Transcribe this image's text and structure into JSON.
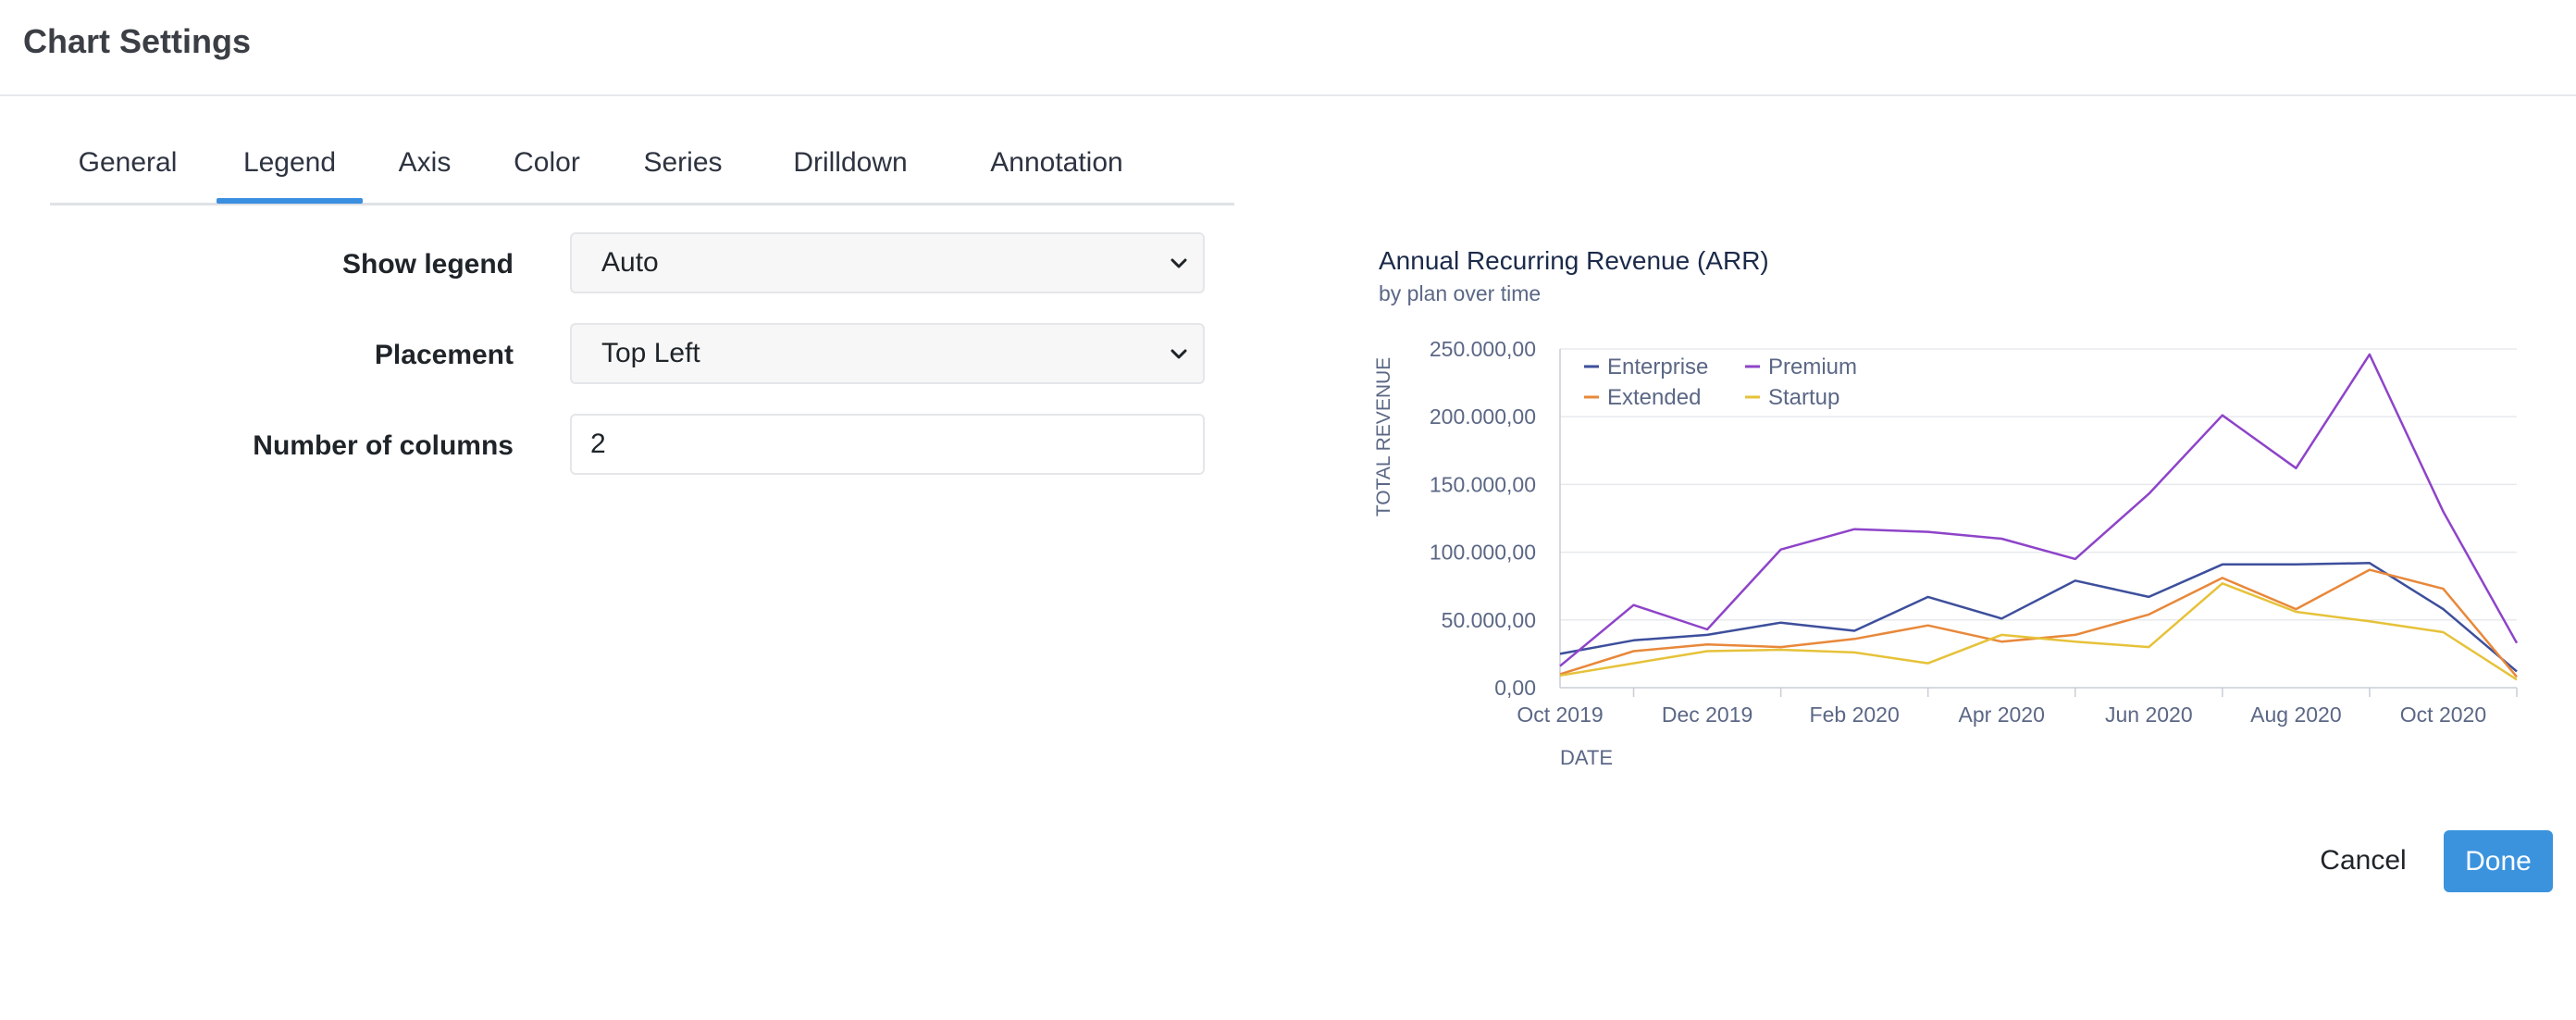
{
  "modal": {
    "title": "Chart Settings"
  },
  "tabs": [
    "General",
    "Legend",
    "Axis",
    "Color",
    "Series",
    "Drilldown",
    "Annotation"
  ],
  "active_tab": "Legend",
  "form": {
    "show_legend": {
      "label": "Show legend",
      "value": "Auto"
    },
    "placement": {
      "label": "Placement",
      "value": "Top Left"
    },
    "columns": {
      "label": "Number of columns",
      "value": "2"
    }
  },
  "buttons": {
    "cancel": "Cancel",
    "done": "Done"
  },
  "colors": {
    "accent": "#3b93de",
    "enterprise": "#3d4f9c",
    "premium": "#8e44c9",
    "extended": "#e8883a",
    "startup": "#e6c23a"
  },
  "chart_data": {
    "type": "line",
    "title": "Annual Recurring Revenue (ARR)",
    "subtitle": "by plan over time",
    "xlabel": "DATE",
    "ylabel": "TOTAL REVENUE",
    "legend_placement": "top-left",
    "legend_columns": 2,
    "grid": true,
    "ylim": [
      0,
      250000
    ],
    "yticks": [
      "0,00",
      "50.000,00",
      "100.000,00",
      "150.000,00",
      "200.000,00",
      "250.000,00"
    ],
    "xtick_labels": [
      "Oct 2019",
      "Dec 2019",
      "Feb 2020",
      "Apr 2020",
      "Jun 2020",
      "Aug 2020",
      "Oct 2020"
    ],
    "x": [
      "2019-10",
      "2019-11",
      "2019-12",
      "2020-01",
      "2020-02",
      "2020-03",
      "2020-04",
      "2020-05",
      "2020-06",
      "2020-07",
      "2020-08",
      "2020-09",
      "2020-10",
      "2020-11"
    ],
    "series": [
      {
        "name": "Enterprise",
        "values": [
          25000,
          35000,
          39000,
          48000,
          42000,
          67000,
          51000,
          79000,
          67000,
          91000,
          91000,
          92000,
          58000,
          12000
        ]
      },
      {
        "name": "Premium",
        "values": [
          16000,
          61000,
          43000,
          102000,
          117000,
          115000,
          110000,
          95000,
          143000,
          201000,
          162000,
          246000,
          130000,
          33000
        ]
      },
      {
        "name": "Extended",
        "values": [
          10000,
          27000,
          32000,
          30000,
          36000,
          46000,
          34000,
          39000,
          54000,
          81000,
          58000,
          87000,
          73000,
          8000
        ]
      },
      {
        "name": "Startup",
        "values": [
          9000,
          18000,
          27000,
          28000,
          26000,
          18000,
          39000,
          34000,
          30000,
          77000,
          56000,
          49000,
          41000,
          6000
        ]
      }
    ]
  }
}
